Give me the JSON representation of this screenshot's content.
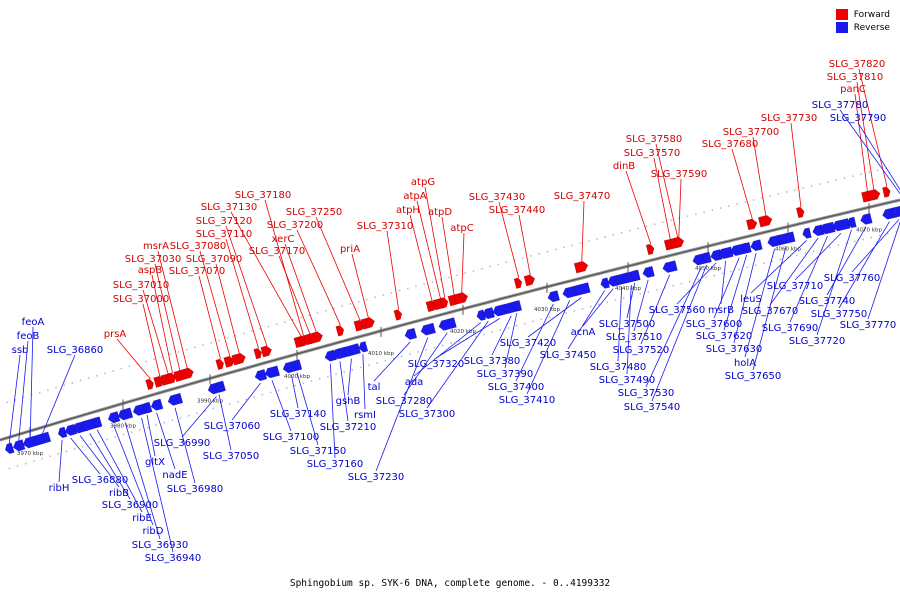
{
  "colors": {
    "forward": "#ee0000",
    "reverse": "#1a1aee",
    "backbone": "#777777",
    "forward_label": "#d40000",
    "reverse_label": "#0000cc"
  },
  "legend": [
    {
      "label": "Forward",
      "color": "#ee0000"
    },
    {
      "label": "Reverse",
      "color": "#1a1aee"
    }
  ],
  "caption": "Sphingobium sp. SYK-6 DNA, complete genome. - 0..4199332",
  "ticks": [
    "3970 kbp",
    "3980 kbp",
    "3990 kbp",
    "4000 kbp",
    "4010 kbp",
    "4020 kbp",
    "4030 kbp",
    "4040 kbp",
    "4050 kbp",
    "4060 kbp",
    "4070 kbp"
  ],
  "forward_genes": [
    "prsA",
    "SLG_37000",
    "SLG_37010",
    "aspB",
    "SLG_37030",
    "msrA",
    "SLG_37070",
    "SLG_37080",
    "SLG_37090",
    "SLG_37110",
    "SLG_37120",
    "SLG_37130",
    "SLG_37180",
    "SLG_37170",
    "xerC",
    "SLG_37200",
    "SLG_37250",
    "priA",
    "SLG_37310",
    "atpH",
    "atpA",
    "atpG",
    "atpD",
    "atpC",
    "SLG_37430",
    "SLG_37440",
    "SLG_37470",
    "dinB",
    "SLG_37570",
    "SLG_37580",
    "SLG_37590",
    "SLG_37680",
    "SLG_37700",
    "SLG_37730",
    "panC",
    "SLG_37810",
    "SLG_37820"
  ],
  "reverse_genes": [
    "ssb",
    "feoB",
    "feoA",
    "SLG_36860",
    "ribH",
    "SLG_36880",
    "ribB",
    "SLG_36900",
    "ribE",
    "ribD",
    "SLG_36930",
    "SLG_36940",
    "gltX",
    "nadE",
    "SLG_36980",
    "SLG_36990",
    "SLG_37050",
    "SLG_37060",
    "SLG_37100",
    "SLG_37140",
    "SLG_37150",
    "SLG_37160",
    "SLG_37210",
    "gshB",
    "rsmI",
    "tal",
    "SLG_37230",
    "SLG_37280",
    "ada",
    "SLG_37300",
    "SLG_37320",
    "SLG_37380",
    "SLG_37390",
    "SLG_37400",
    "SLG_37410",
    "SLG_37420",
    "SLG_37450",
    "acnA",
    "SLG_37480",
    "SLG_37490",
    "SLG_37500",
    "SLG_37510",
    "SLG_37520",
    "SLG_37530",
    "SLG_37540",
    "SLG_37560",
    "msrB",
    "SLG_37600",
    "SLG_37620",
    "SLG_37630",
    "holA",
    "SLG_37650",
    "leuS",
    "SLG_37670",
    "SLG_37690",
    "SLG_37710",
    "SLG_37720",
    "SLG_37740",
    "SLG_37750",
    "SLG_37760",
    "SLG_37770",
    "SLG_37780",
    "SLG_37790"
  ]
}
